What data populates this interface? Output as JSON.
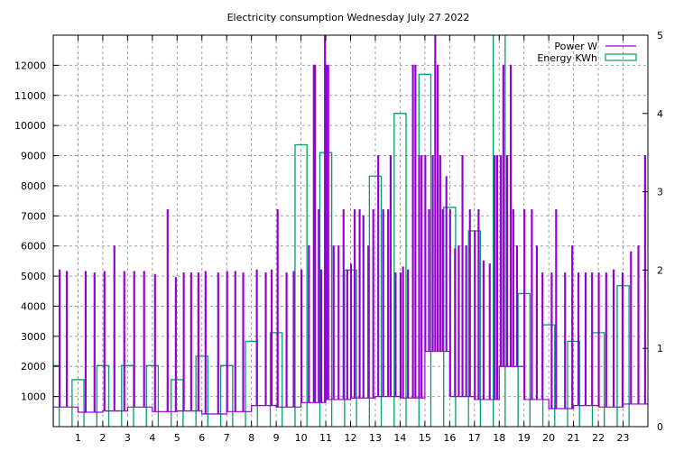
{
  "chart_data": {
    "type": "line",
    "title": "Electricity consumption Wednesday July 27 2022",
    "xlabel": "",
    "ylabel": "",
    "xlim": [
      0,
      24
    ],
    "ylim": [
      0,
      13000
    ],
    "y2lim": [
      0,
      5
    ],
    "x_ticks": [
      "1",
      "2",
      "3",
      "4",
      "5",
      "6",
      "7",
      "8",
      "9",
      "10",
      "11",
      "12",
      "13",
      "14",
      "15",
      "16",
      "17",
      "18",
      "19",
      "20",
      "21",
      "22",
      "23"
    ],
    "y_ticks": [
      "1000",
      "2000",
      "3000",
      "4000",
      "5000",
      "6000",
      "7000",
      "8000",
      "9000",
      "10000",
      "11000",
      "12000"
    ],
    "y2_ticks": [
      "0",
      "1",
      "2",
      "3",
      "4",
      "5"
    ],
    "grid": true,
    "legend_position": "top-right",
    "series": [
      {
        "name": "Power W",
        "color": "#9400d3",
        "style": "steps",
        "baseline_by_hour": [
          650,
          480,
          520,
          650,
          500,
          520,
          420,
          500,
          700,
          650,
          800,
          900,
          950,
          1000,
          950,
          2500,
          1000,
          900,
          2000,
          900,
          600,
          700,
          650,
          750
        ],
        "spikes": [
          [
            0.24,
            5200
          ],
          [
            0.53,
            5150
          ],
          [
            1.29,
            5150
          ],
          [
            1.65,
            5100
          ],
          [
            2.05,
            5150
          ],
          [
            2.45,
            6000
          ],
          [
            2.85,
            5150
          ],
          [
            3.25,
            5150
          ],
          [
            3.65,
            5150
          ],
          [
            4.09,
            5050
          ],
          [
            4.6,
            7200
          ],
          [
            4.93,
            4950
          ],
          [
            5.25,
            5100
          ],
          [
            5.55,
            5100
          ],
          [
            5.84,
            5100
          ],
          [
            6.13,
            5150
          ],
          [
            6.64,
            5100
          ],
          [
            7.0,
            5150
          ],
          [
            7.33,
            5150
          ],
          [
            7.65,
            5100
          ],
          [
            8.2,
            5200
          ],
          [
            8.56,
            5100
          ],
          [
            8.8,
            5200
          ],
          [
            9.04,
            7200
          ],
          [
            9.4,
            5100
          ],
          [
            9.69,
            5150
          ],
          [
            10.0,
            5200
          ],
          [
            10.3,
            6000
          ],
          [
            10.5,
            12000
          ],
          [
            10.55,
            12000
          ],
          [
            10.7,
            7200
          ],
          [
            10.8,
            5200
          ],
          [
            10.95,
            13000
          ],
          [
            11.0,
            12000
          ],
          [
            11.08,
            12000
          ],
          [
            11.3,
            6000
          ],
          [
            11.5,
            6000
          ],
          [
            11.7,
            7200
          ],
          [
            11.85,
            5200
          ],
          [
            12.0,
            5400
          ],
          [
            12.15,
            7200
          ],
          [
            12.35,
            7200
          ],
          [
            12.5,
            7000
          ],
          [
            12.7,
            6000
          ],
          [
            12.9,
            7200
          ],
          [
            13.1,
            9000
          ],
          [
            13.3,
            7200
          ],
          [
            13.5,
            7200
          ],
          [
            13.6,
            9000
          ],
          [
            13.8,
            5100
          ],
          [
            14.0,
            5100
          ],
          [
            14.1,
            5300
          ],
          [
            14.3,
            5200
          ],
          [
            14.5,
            12000
          ],
          [
            14.6,
            12000
          ],
          [
            14.75,
            9000
          ],
          [
            14.85,
            9000
          ],
          [
            15.0,
            9000
          ],
          [
            15.15,
            7200
          ],
          [
            15.3,
            9000
          ],
          [
            15.4,
            13000
          ],
          [
            15.5,
            12000
          ],
          [
            15.6,
            9000
          ],
          [
            15.7,
            7200
          ],
          [
            15.85,
            8300
          ],
          [
            16.0,
            7200
          ],
          [
            16.2,
            5900
          ],
          [
            16.35,
            6000
          ],
          [
            16.5,
            9000
          ],
          [
            16.65,
            6000
          ],
          [
            16.8,
            7200
          ],
          [
            17.0,
            6500
          ],
          [
            17.15,
            7200
          ],
          [
            17.35,
            5500
          ],
          [
            17.6,
            5400
          ],
          [
            17.8,
            9000
          ],
          [
            17.9,
            9000
          ],
          [
            18.05,
            9000
          ],
          [
            18.15,
            12000
          ],
          [
            18.3,
            9000
          ],
          [
            18.45,
            12000
          ],
          [
            18.55,
            7200
          ],
          [
            18.7,
            6000
          ],
          [
            19.0,
            7200
          ],
          [
            19.3,
            7200
          ],
          [
            19.5,
            6000
          ],
          [
            19.73,
            5100
          ],
          [
            20.1,
            5100
          ],
          [
            20.28,
            7200
          ],
          [
            20.64,
            5100
          ],
          [
            20.93,
            6000
          ],
          [
            21.18,
            5100
          ],
          [
            21.47,
            5100
          ],
          [
            21.73,
            5100
          ],
          [
            22.0,
            5100
          ],
          [
            22.3,
            5100
          ],
          [
            22.6,
            5200
          ],
          [
            22.96,
            5100
          ],
          [
            23.3,
            5800
          ],
          [
            23.6,
            6000
          ],
          [
            23.87,
            9000
          ]
        ]
      },
      {
        "name": "Energy KWh",
        "color": "#009e73",
        "style": "boxes",
        "axis": "y2",
        "x": [
          0,
          1,
          2,
          3,
          4,
          5,
          6,
          7,
          8,
          9,
          10,
          11,
          12,
          13,
          14,
          15,
          16,
          17,
          18,
          19,
          20,
          21,
          22,
          23
        ],
        "values": [
          0.78,
          0.6,
          0.78,
          0.78,
          0.78,
          0.6,
          0.9,
          0.78,
          1.09,
          1.2,
          3.6,
          3.5,
          2.0,
          3.2,
          4.0,
          4.5,
          2.8,
          2.5,
          5.5,
          1.7,
          1.3,
          1.09,
          1.2,
          1.8
        ]
      }
    ]
  }
}
